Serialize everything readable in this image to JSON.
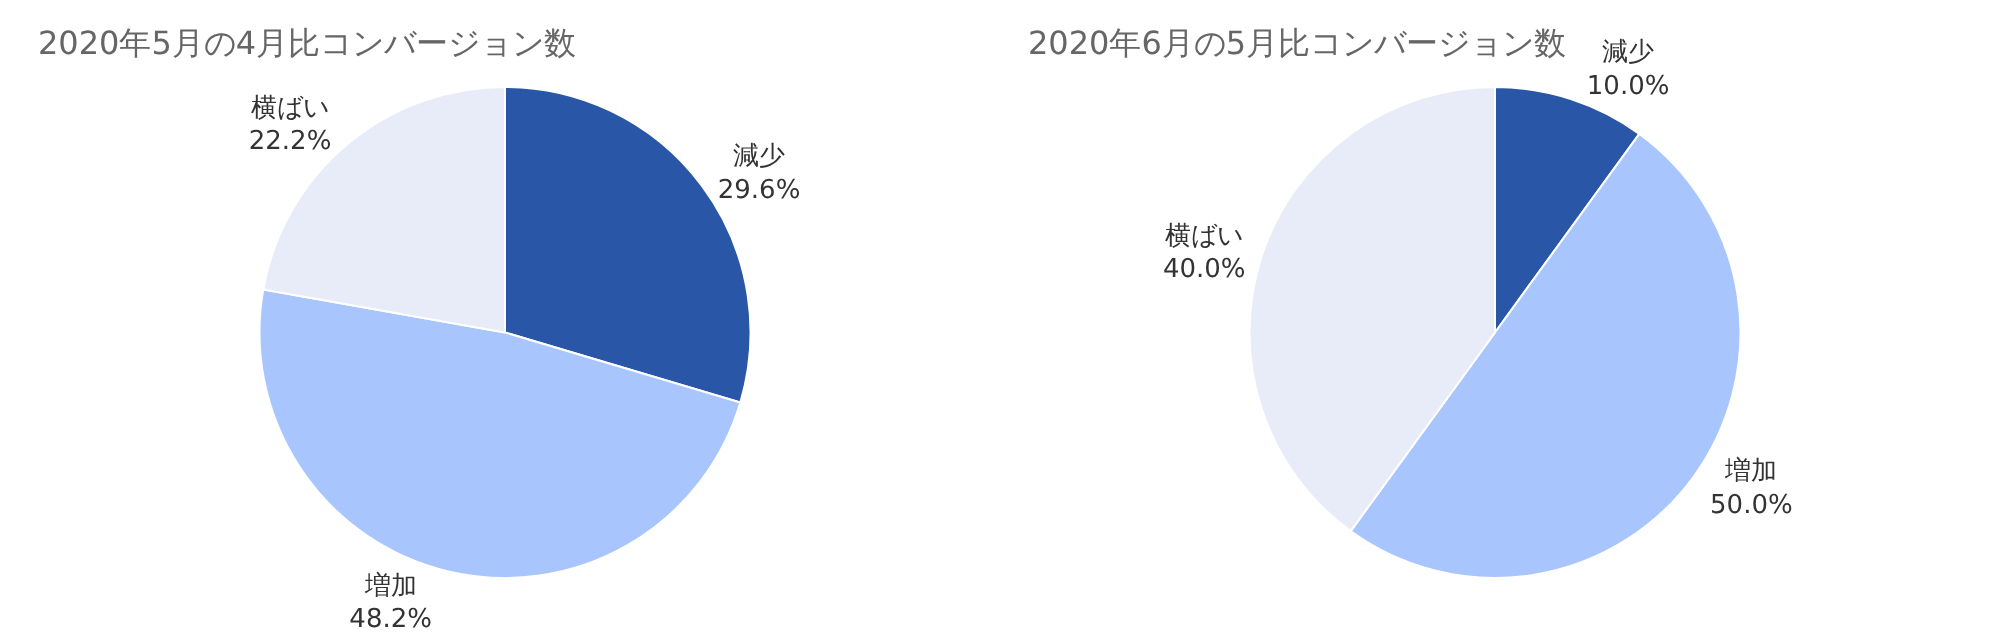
{
  "chart_data": [
    {
      "type": "pie",
      "title": "2020年5月の4月比コンバージョン数",
      "categories": [
        "減少",
        "増加",
        "横ばい"
      ],
      "values": [
        29.6,
        48.2,
        22.2
      ],
      "colors": [
        "#2a56a8",
        "#a8c5fe",
        "#e8ecf8"
      ],
      "value_labels": [
        "29.6%",
        "48.2%",
        "22.2%"
      ],
      "legend": false
    },
    {
      "type": "pie",
      "title": "2020年6月の5月比コンバージョン数",
      "categories": [
        "減少",
        "増加",
        "横ばい"
      ],
      "values": [
        10.0,
        50.0,
        40.0
      ],
      "colors": [
        "#2a56a8",
        "#a8c5fe",
        "#e8ecf8"
      ],
      "value_labels": [
        "10.0%",
        "50.0%",
        "40.0%"
      ],
      "legend": false
    }
  ]
}
